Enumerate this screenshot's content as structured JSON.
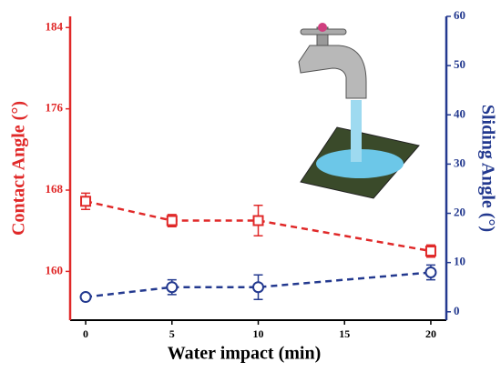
{
  "chart_data": {
    "type": "line",
    "x_label": "Water impact (min)",
    "y_label": "Contact Angle (°)",
    "y2_label": "Sliding Angle (°)",
    "x": [
      0,
      5,
      10,
      20
    ],
    "xlim": [
      -0.9,
      20.9
    ],
    "xticks": [
      0,
      5,
      10,
      15,
      20
    ],
    "ylim": [
      155.2,
      185.1
    ],
    "yticks": [
      160,
      168,
      176,
      184
    ],
    "y2lim": [
      -1.7,
      60
    ],
    "y2ticks": [
      0,
      10,
      20,
      30,
      40,
      50,
      60
    ],
    "y_color": "#e02828",
    "y2_color": "#23398f",
    "series": [
      {
        "color": "#e02828",
        "marker": "square",
        "values": [
          166.9,
          165.0,
          165.0,
          162.0
        ],
        "errors": [
          0.8,
          0.6,
          1.5,
          0.6
        ]
      },
      {
        "color": "#23398f",
        "marker": "circle",
        "axis": "y2",
        "values": [
          3.0,
          5.0,
          5.0,
          8.0
        ],
        "errors": [
          0.3,
          1.5,
          2.5,
          1.5
        ]
      }
    ]
  }
}
